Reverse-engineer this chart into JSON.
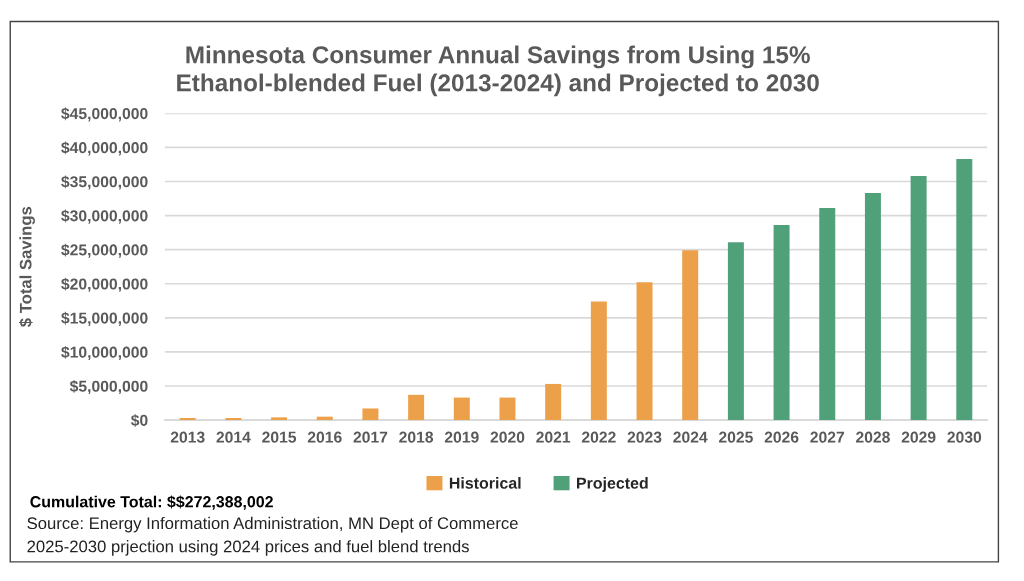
{
  "chart_data": {
    "type": "bar",
    "title": "Minnesota Consumer Annual Savings from Using 15%\nEthanol-blended Fuel (2013-2024) and Projected to 2030",
    "ylabel": "$ Total Savings",
    "categories": [
      "2013",
      "2014",
      "2015",
      "2016",
      "2017",
      "2018",
      "2019",
      "2020",
      "2021",
      "2022",
      "2023",
      "2024",
      "2025",
      "2026",
      "2027",
      "2028",
      "2029",
      "2030"
    ],
    "series": [
      {
        "name": "Historical",
        "color": "#eda04a",
        "values": [
          300000,
          300000,
          400000,
          500000,
          1700000,
          3700000,
          3300000,
          3300000,
          5300000,
          17400000,
          20200000,
          24900000,
          null,
          null,
          null,
          null,
          null,
          null
        ]
      },
      {
        "name": "Projected",
        "color": "#50a07a",
        "values": [
          null,
          null,
          null,
          null,
          null,
          null,
          null,
          null,
          null,
          null,
          null,
          null,
          26100000,
          28600000,
          31100000,
          33300000,
          35800000,
          38300000
        ]
      }
    ],
    "stacked": true,
    "ylim": [
      0,
      45000000
    ],
    "yticks": [
      {
        "value": 0,
        "label": "$0"
      },
      {
        "value": 5000000,
        "label": "$5,000,000"
      },
      {
        "value": 10000000,
        "label": "$10,000,000"
      },
      {
        "value": 15000000,
        "label": "$15,000,000"
      },
      {
        "value": 20000000,
        "label": "$20,000,000"
      },
      {
        "value": 25000000,
        "label": "$25,000,000"
      },
      {
        "value": 30000000,
        "label": "$30,000,000"
      },
      {
        "value": 35000000,
        "label": "$35,000,000"
      },
      {
        "value": 40000000,
        "label": "$40,000,000"
      },
      {
        "value": 45000000,
        "label": "$45,000,000"
      }
    ],
    "grid": "y",
    "legend": "bottom",
    "annotations": [
      "Cumulative Total: $$272,388,002",
      "Source: Energy Information Administration, MN Dept of Commerce",
      "2025-2030 prjection using 2024 prices and fuel blend trends"
    ]
  }
}
